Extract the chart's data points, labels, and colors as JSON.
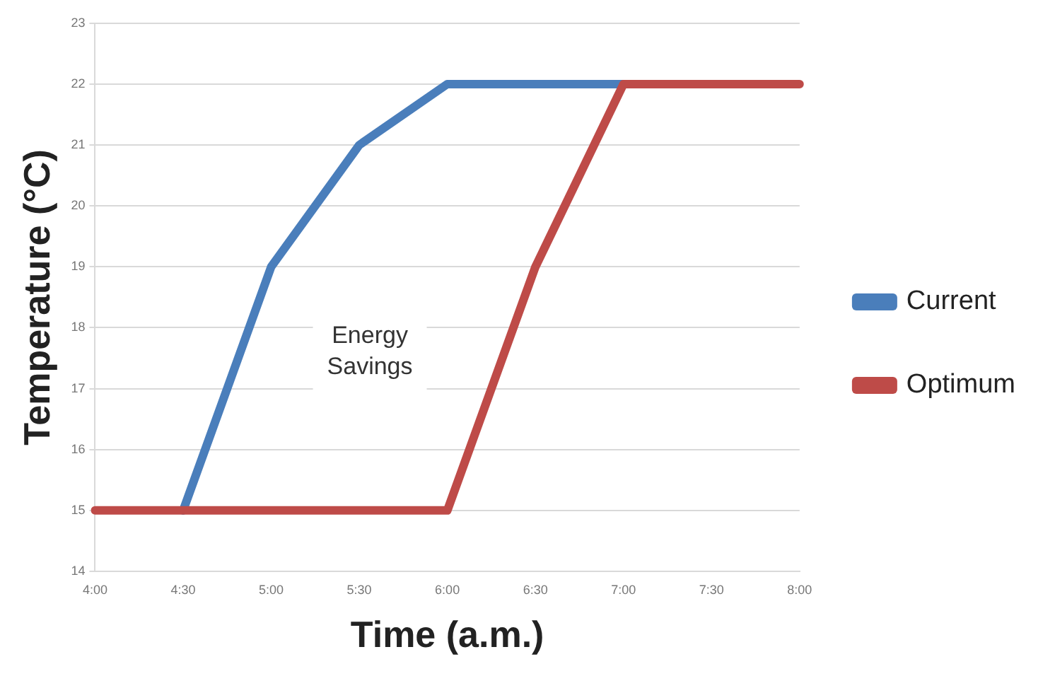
{
  "chart_data": {
    "type": "line",
    "xlabel": "Time (a.m.)",
    "ylabel": "Temperature (°C)",
    "categories": [
      "4:00",
      "4:30",
      "5:00",
      "5:30",
      "6:00",
      "6:30",
      "7:00",
      "7:30",
      "8:00"
    ],
    "series": [
      {
        "name": "Current",
        "color": "#4a7ebb",
        "values": [
          null,
          15,
          19,
          21,
          22,
          22,
          22,
          null,
          null
        ]
      },
      {
        "name": "Optimum",
        "color": "#be4b48",
        "values": [
          15,
          15,
          15,
          15,
          15,
          19,
          22,
          22,
          22
        ]
      }
    ],
    "ylim": [
      14,
      23
    ],
    "yticks": [
      14,
      15,
      16,
      17,
      18,
      19,
      20,
      21,
      22,
      23
    ],
    "grid": "y",
    "legend": "right",
    "marker": "none",
    "annotations": [
      "Energy Savings"
    ]
  }
}
